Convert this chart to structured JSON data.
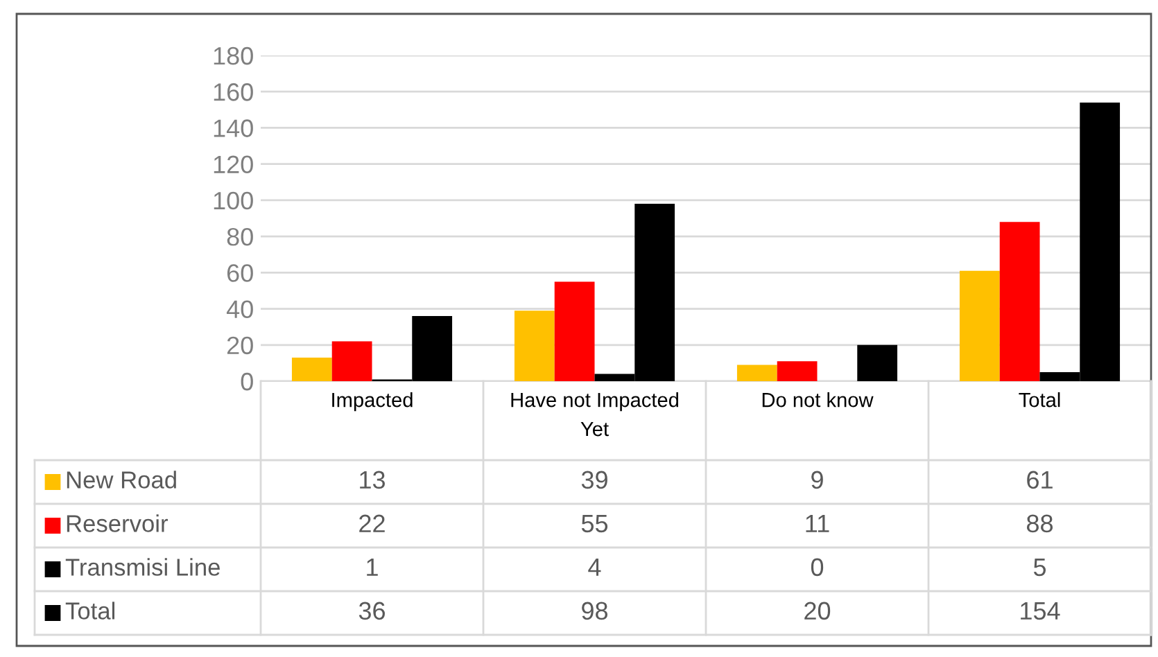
{
  "chart_data": {
    "type": "bar",
    "categories": [
      "Impacted",
      "Have not Impacted\nYet",
      "Do not know",
      "Total"
    ],
    "series": [
      {
        "name": "New Road",
        "color": "#ffc000",
        "values": [
          13,
          39,
          9,
          61
        ]
      },
      {
        "name": "Reservoir",
        "color": "#ff0000",
        "values": [
          22,
          55,
          11,
          88
        ]
      },
      {
        "name": "Transmisi Line",
        "color": "#000000",
        "values": [
          1,
          4,
          0,
          5
        ]
      },
      {
        "name": "Total",
        "color": "#000000",
        "values": [
          36,
          98,
          20,
          154
        ]
      }
    ],
    "ylim": [
      0,
      180
    ],
    "yticks": [
      0,
      20,
      40,
      60,
      80,
      100,
      120,
      140,
      160,
      180
    ],
    "grid": "y",
    "data_labels": true,
    "legend": "bottom left"
  }
}
